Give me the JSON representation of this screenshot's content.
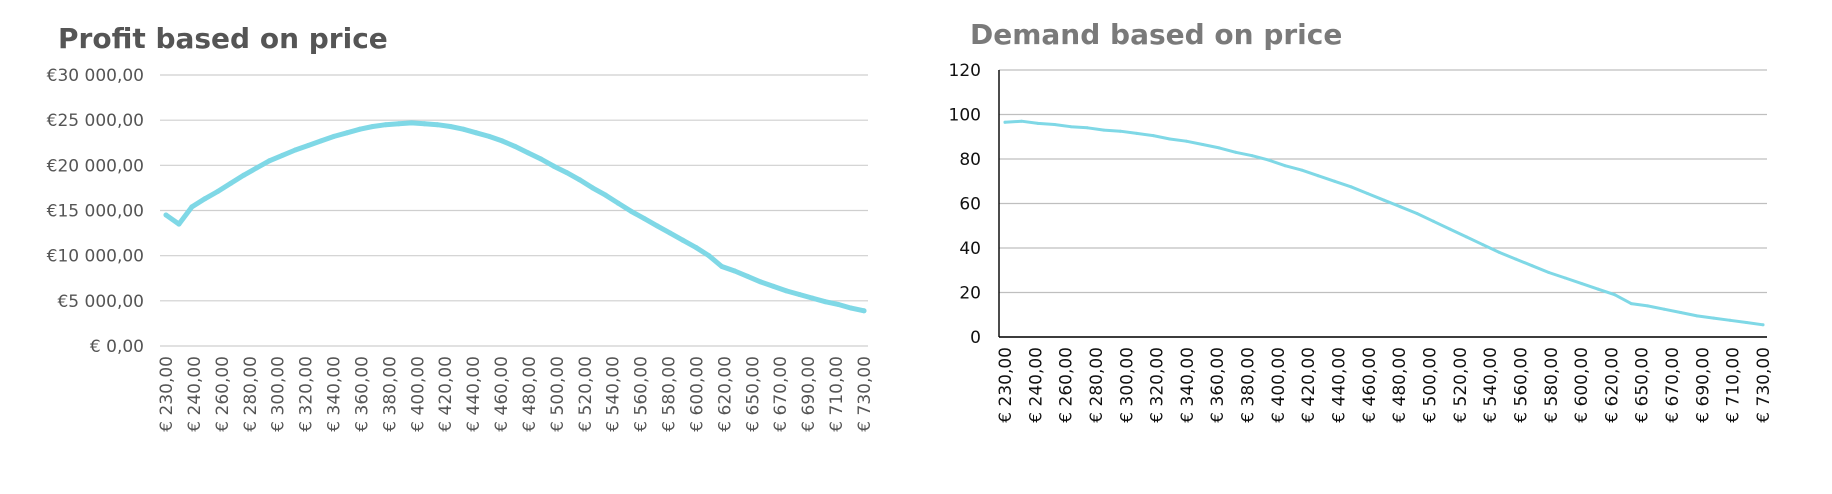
{
  "chart_data": [
    {
      "type": "line",
      "title": "Profit based on price",
      "xlabel": "",
      "ylabel": "",
      "ylim": [
        0,
        30000
      ],
      "y_ticks": [
        0,
        5000,
        10000,
        15000,
        20000,
        25000,
        30000
      ],
      "y_tick_labels": [
        "€ 0,00",
        "€5 000,00",
        "€10 000,00",
        "€15 000,00",
        "€20 000,00",
        "€25 000,00",
        "€30 000,00"
      ],
      "x_tick_labels": [
        "€ 230,00",
        "€ 240,00",
        "€ 260,00",
        "€ 280,00",
        "€ 300,00",
        "€ 320,00",
        "€ 340,00",
        "€ 360,00",
        "€ 380,00",
        "€ 400,00",
        "€ 420,00",
        "€ 440,00",
        "€ 460,00",
        "€ 480,00",
        "€ 500,00",
        "€ 520,00",
        "€ 540,00",
        "€ 560,00",
        "€ 580,00",
        "€ 600,00",
        "€ 620,00",
        "€ 650,00",
        "€ 670,00",
        "€ 690,00",
        "€ 710,00",
        "€ 730,00"
      ],
      "grid": true,
      "legend": "none",
      "line_color": "#7fd8e6",
      "series": [
        {
          "values": [
            14500,
            13500,
            15400,
            16300,
            17100,
            18000,
            18900,
            19700,
            20500,
            21100,
            21700,
            22200,
            22700,
            23200,
            23600,
            24000,
            24300,
            24500,
            24600,
            24700,
            24600,
            24500,
            24300,
            24000,
            23600,
            23200,
            22700,
            22100,
            21400,
            20700,
            19900,
            19200,
            18400,
            17500,
            16700,
            15800,
            14900,
            14100,
            13300,
            12500,
            11700,
            10900,
            10000,
            8800,
            8300,
            7700,
            7100,
            6600,
            6100,
            5700,
            5300,
            4900,
            4600,
            4200,
            3900
          ]
        }
      ]
    },
    {
      "type": "line",
      "title": "Demand based on price",
      "xlabel": "",
      "ylabel": "",
      "ylim": [
        0,
        120
      ],
      "y_ticks": [
        0,
        20,
        40,
        60,
        80,
        100,
        120
      ],
      "y_tick_labels": [
        "0",
        "20",
        "40",
        "60",
        "80",
        "100",
        "120"
      ],
      "x_tick_labels": [
        "€ 230,00",
        "€ 240,00",
        "€ 260,00",
        "€ 280,00",
        "€ 300,00",
        "€ 320,00",
        "€ 340,00",
        "€ 360,00",
        "€ 380,00",
        "€ 400,00",
        "€ 420,00",
        "€ 440,00",
        "€ 460,00",
        "€ 480,00",
        "€ 500,00",
        "€ 520,00",
        "€ 540,00",
        "€ 560,00",
        "€ 580,00",
        "€ 600,00",
        "€ 620,00",
        "€ 650,00",
        "€ 670,00",
        "€ 690,00",
        "€ 710,00",
        "€ 730,00"
      ],
      "grid": true,
      "legend": "none",
      "line_color": "#7fd8e6",
      "series": [
        {
          "values": [
            96.5,
            97,
            96,
            95.5,
            94.5,
            94,
            93,
            92.5,
            91.5,
            90.5,
            89,
            88,
            86.5,
            85,
            83,
            81.5,
            79.5,
            77,
            75,
            72.5,
            70,
            67.5,
            64.5,
            61.5,
            58.5,
            55.5,
            52,
            48.5,
            45,
            41.5,
            38,
            35,
            32,
            29,
            26.5,
            24,
            21.5,
            19,
            15,
            14,
            12.5,
            11,
            9.5,
            8.5,
            7.5,
            6.5,
            5.5
          ]
        }
      ]
    }
  ]
}
